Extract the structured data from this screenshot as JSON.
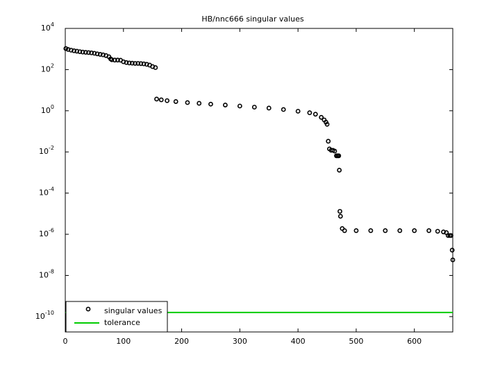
{
  "chart_data": {
    "type": "scatter",
    "title": "HB/nnc666 singular values",
    "xlim": [
      0,
      666
    ],
    "xticks": [
      0,
      100,
      200,
      300,
      400,
      500,
      600
    ],
    "ylim": [
      1.8e-11,
      10000
    ],
    "log_y": true,
    "grid": false,
    "legend": "lower left",
    "yticks": [
      {
        "value": 10000,
        "label": "10^4"
      },
      {
        "value": 100,
        "label": "10^2"
      },
      {
        "value": 1,
        "label": "10^0"
      },
      {
        "value": 0.01,
        "label": "10^-2"
      },
      {
        "value": 0.0001,
        "label": "10^-4"
      },
      {
        "value": 1e-06,
        "label": "10^-6"
      },
      {
        "value": 1e-08,
        "label": "10^-8"
      },
      {
        "value": 1e-10,
        "label": "10^-10"
      }
    ],
    "series": [
      {
        "name": "singular values",
        "color": "#000000",
        "mode": "markers",
        "x": [
          1,
          5,
          10,
          15,
          20,
          25,
          30,
          35,
          40,
          45,
          50,
          55,
          60,
          65,
          70,
          75,
          78,
          80,
          85,
          90,
          95,
          100,
          105,
          110,
          115,
          120,
          125,
          130,
          135,
          140,
          145,
          150,
          155,
          157,
          165,
          175,
          190,
          210,
          230,
          250,
          275,
          300,
          325,
          350,
          375,
          400,
          420,
          430,
          440,
          445,
          448,
          450,
          452,
          454,
          457,
          460,
          463,
          466,
          468,
          470,
          471,
          472,
          473,
          476,
          480,
          500,
          525,
          550,
          575,
          600,
          625,
          640,
          650,
          655,
          658,
          661,
          663,
          665,
          666
        ],
        "values": [
          1050,
          950,
          880,
          820,
          780,
          740,
          710,
          690,
          670,
          650,
          620,
          580,
          550,
          520,
          480,
          420,
          330,
          300,
          290,
          290,
          285,
          240,
          220,
          210,
          205,
          200,
          200,
          195,
          190,
          180,
          165,
          140,
          125,
          3.7,
          3.4,
          3.1,
          2.8,
          2.5,
          2.3,
          2.1,
          1.9,
          1.7,
          1.5,
          1.35,
          1.15,
          0.95,
          0.8,
          0.68,
          0.48,
          0.36,
          0.28,
          0.22,
          0.033,
          0.014,
          0.012,
          0.012,
          0.011,
          0.0065,
          0.0065,
          0.0065,
          0.0013,
          1.3e-05,
          7.5e-06,
          1.9e-06,
          1.5e-06,
          1.5e-06,
          1.5e-06,
          1.5e-06,
          1.5e-06,
          1.5e-06,
          1.5e-06,
          1.4e-06,
          1.3e-06,
          1.2e-06,
          8.7e-07,
          8.7e-07,
          8.7e-07,
          1.7e-07,
          5.7e-08
        ]
      },
      {
        "name": "tolerance",
        "color": "#00cc00",
        "mode": "line",
        "x": [
          0,
          666
        ],
        "values": [
          1.6e-10,
          1.6e-10
        ]
      }
    ]
  }
}
